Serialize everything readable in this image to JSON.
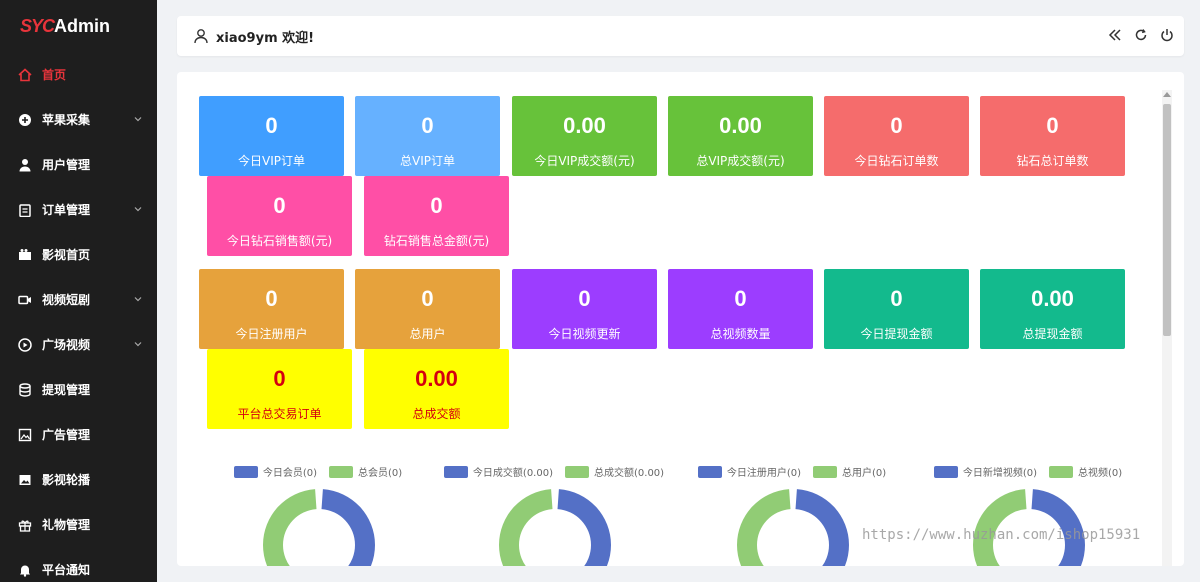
{
  "logo": {
    "mark": "SYC",
    "name": "Admin"
  },
  "sidebar": {
    "items": [
      {
        "label": "首页",
        "icon": "home-icon",
        "active": true,
        "expand": false
      },
      {
        "label": "苹果采集",
        "icon": "plus-circle-icon",
        "active": false,
        "expand": true
      },
      {
        "label": "用户管理",
        "icon": "user-icon",
        "active": false,
        "expand": false
      },
      {
        "label": "订单管理",
        "icon": "clipboard-icon",
        "active": false,
        "expand": true
      },
      {
        "label": "影视首页",
        "icon": "film-icon",
        "active": false,
        "expand": false
      },
      {
        "label": "视频短剧",
        "icon": "video-icon",
        "active": false,
        "expand": true
      },
      {
        "label": "广场视频",
        "icon": "play-circle-icon",
        "active": false,
        "expand": true
      },
      {
        "label": "提现管理",
        "icon": "database-icon",
        "active": false,
        "expand": false
      },
      {
        "label": "广告管理",
        "icon": "image-icon",
        "active": false,
        "expand": false
      },
      {
        "label": "影视轮播",
        "icon": "picture-icon",
        "active": false,
        "expand": false
      },
      {
        "label": "礼物管理",
        "icon": "gift-icon",
        "active": false,
        "expand": false
      },
      {
        "label": "平台通知",
        "icon": "bell-icon",
        "active": false,
        "expand": false
      }
    ]
  },
  "header": {
    "welcome": "xiao9ym 欢迎!"
  },
  "cards": [
    {
      "value": "0",
      "label": "今日VIP订单",
      "color": "#409eff"
    },
    {
      "value": "0",
      "label": "总VIP订单",
      "color": "#66b1ff"
    },
    {
      "value": "0.00",
      "label": "今日VIP成交额(元)",
      "color": "#67c23a"
    },
    {
      "value": "0.00",
      "label": "总VIP成交额(元)",
      "color": "#67c23a"
    },
    {
      "value": "0",
      "label": "今日钻石订单数",
      "color": "#f56c6c"
    },
    {
      "value": "0",
      "label": "钻石总订单数",
      "color": "#f56c6c"
    },
    {
      "value": "0",
      "label": "今日钻石销售额(元)",
      "color": "#ff4fa6"
    },
    {
      "value": "0",
      "label": "钻石销售总金额(元)",
      "color": "#ff4fa6"
    },
    {
      "value": "0",
      "label": "今日注册用户",
      "color": "#e6a23c"
    },
    {
      "value": "0",
      "label": "总用户",
      "color": "#e6a23c"
    },
    {
      "value": "0",
      "label": "今日视频更新",
      "color": "#9c3dff"
    },
    {
      "value": "0",
      "label": "总视频数量",
      "color": "#9c3dff"
    },
    {
      "value": "0",
      "label": "今日提现金额",
      "color": "#13ba8d"
    },
    {
      "value": "0.00",
      "label": "总提现金额",
      "color": "#13ba8d"
    },
    {
      "value": "0",
      "label": "平台总交易订单",
      "color": "#ffff00"
    },
    {
      "value": "0.00",
      "label": "总成交额",
      "color": "#ffff00"
    }
  ],
  "charts": [
    {
      "legend": [
        "今日会员(0)",
        "总会员(0)"
      ],
      "colors": [
        "#5470c6",
        "#91cc75"
      ]
    },
    {
      "legend": [
        "今日成交额(0.00)",
        "总成交额(0.00)"
      ],
      "colors": [
        "#5470c6",
        "#91cc75"
      ]
    },
    {
      "legend": [
        "今日注册用户(0)",
        "总用户(0)"
      ],
      "colors": [
        "#5470c6",
        "#91cc75"
      ]
    },
    {
      "legend": [
        "今日新增视频(0)",
        "总视频(0)"
      ],
      "colors": [
        "#5470c6",
        "#91cc75"
      ]
    }
  ],
  "watermark": "https://www.huzhan.com/ishop15931"
}
